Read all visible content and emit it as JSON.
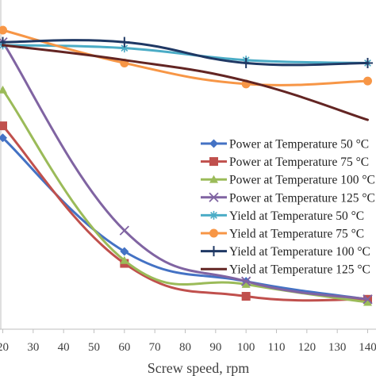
{
  "chart_data": {
    "type": "line",
    "xlabel": "Screw speed, rpm",
    "ylabel": "",
    "title": "",
    "x_ticks": [
      20,
      30,
      40,
      50,
      60,
      70,
      80,
      90,
      100,
      110,
      120,
      130,
      140
    ],
    "xlim": [
      20,
      142
    ],
    "ylim": [
      0,
      1
    ],
    "grid": false,
    "legend_position": "right",
    "series": [
      {
        "name": "Power at Temperature 50 °C",
        "color": "#4472C4",
        "marker": "diamond",
        "x": [
          20,
          60,
          100,
          140
        ],
        "y": [
          0.64,
          0.26,
          0.16,
          0.1
        ]
      },
      {
        "name": "Power at Temperature 75 °C",
        "color": "#C0504D",
        "marker": "square",
        "x": [
          20,
          60,
          100,
          140
        ],
        "y": [
          0.68,
          0.22,
          0.11,
          0.1
        ]
      },
      {
        "name": "Power at Temperature 100 °C",
        "color": "#9BBB59",
        "marker": "triangle",
        "x": [
          20,
          60,
          100,
          140
        ],
        "y": [
          0.8,
          0.23,
          0.15,
          0.09
        ]
      },
      {
        "name": "Power at Temperature 125 °C",
        "color": "#8064A2",
        "marker": "x",
        "x": [
          20,
          60,
          100,
          140
        ],
        "y": [
          0.96,
          0.33,
          0.16,
          0.1
        ]
      },
      {
        "name": "Yield at Temperature 50 °C",
        "color": "#4BACC6",
        "marker": "asterisk",
        "x": [
          20,
          60,
          100,
          140
        ],
        "y": [
          0.95,
          0.94,
          0.9,
          0.89
        ]
      },
      {
        "name": "Yield at Temperature 75 °C",
        "color": "#F79646",
        "marker": "circle",
        "x": [
          20,
          60,
          100,
          140
        ],
        "y": [
          1.0,
          0.89,
          0.82,
          0.83
        ]
      },
      {
        "name": "Yield at Temperature 100 °C",
        "color": "#1F3864",
        "marker": "plus",
        "x": [
          20,
          60,
          100,
          140
        ],
        "y": [
          0.96,
          0.96,
          0.89,
          0.89
        ]
      },
      {
        "name": "Yield at Temperature 125 °C",
        "color": "#632523",
        "marker": "none",
        "x": [
          20,
          60,
          100,
          140
        ],
        "y": [
          0.95,
          0.9,
          0.83,
          0.7
        ]
      }
    ]
  }
}
